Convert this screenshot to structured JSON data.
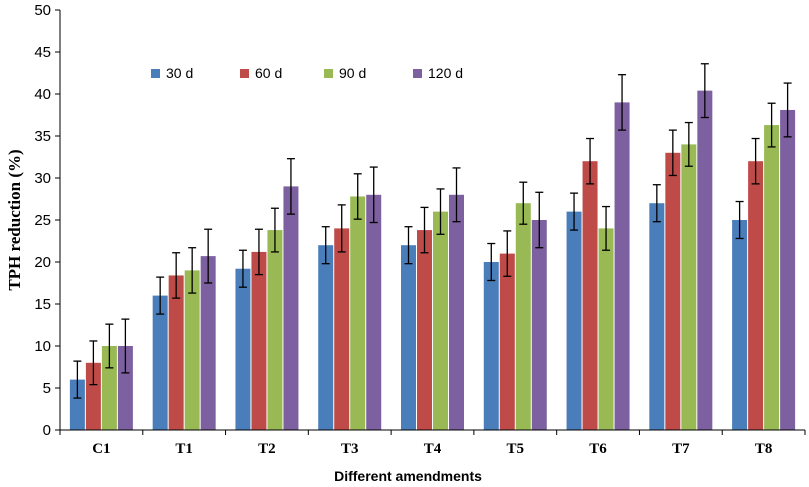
{
  "chart_data": {
    "type": "bar",
    "title": "",
    "xlabel": "Different amendments",
    "ylabel": "TPH reduction (%)",
    "ylim": [
      0,
      50
    ],
    "yticks": [
      0,
      5,
      10,
      15,
      20,
      25,
      30,
      35,
      40,
      45,
      50
    ],
    "grid": false,
    "legend_position": "top-left",
    "categories": [
      "C1",
      "T1",
      "T2",
      "T3",
      "T4",
      "T5",
      "T6",
      "T7",
      "T8"
    ],
    "series": [
      {
        "name": "30 d",
        "color": "#4a7ebb",
        "values": [
          6,
          16,
          19.2,
          22,
          22,
          20,
          26,
          27,
          25
        ],
        "errors": [
          2.2,
          2.2,
          2.2,
          2.2,
          2.2,
          2.2,
          2.2,
          2.2,
          2.2
        ]
      },
      {
        "name": "60 d",
        "color": "#be4b48",
        "values": [
          8,
          18.4,
          21.2,
          24,
          23.8,
          21,
          32,
          33,
          32
        ],
        "errors": [
          2.6,
          2.7,
          2.7,
          2.8,
          2.7,
          2.7,
          2.7,
          2.7,
          2.7
        ]
      },
      {
        "name": "90 d",
        "color": "#98b954",
        "values": [
          10,
          19,
          23.8,
          27.8,
          26,
          27,
          24,
          34,
          36.3
        ],
        "errors": [
          2.6,
          2.7,
          2.6,
          2.7,
          2.7,
          2.5,
          2.6,
          2.6,
          2.6
        ]
      },
      {
        "name": "120 d",
        "color": "#7d60a0",
        "values": [
          10,
          20.7,
          29,
          28,
          28,
          25,
          39,
          40.4,
          38.1
        ],
        "errors": [
          3.2,
          3.2,
          3.3,
          3.3,
          3.2,
          3.3,
          3.3,
          3.2,
          3.2
        ]
      }
    ]
  }
}
